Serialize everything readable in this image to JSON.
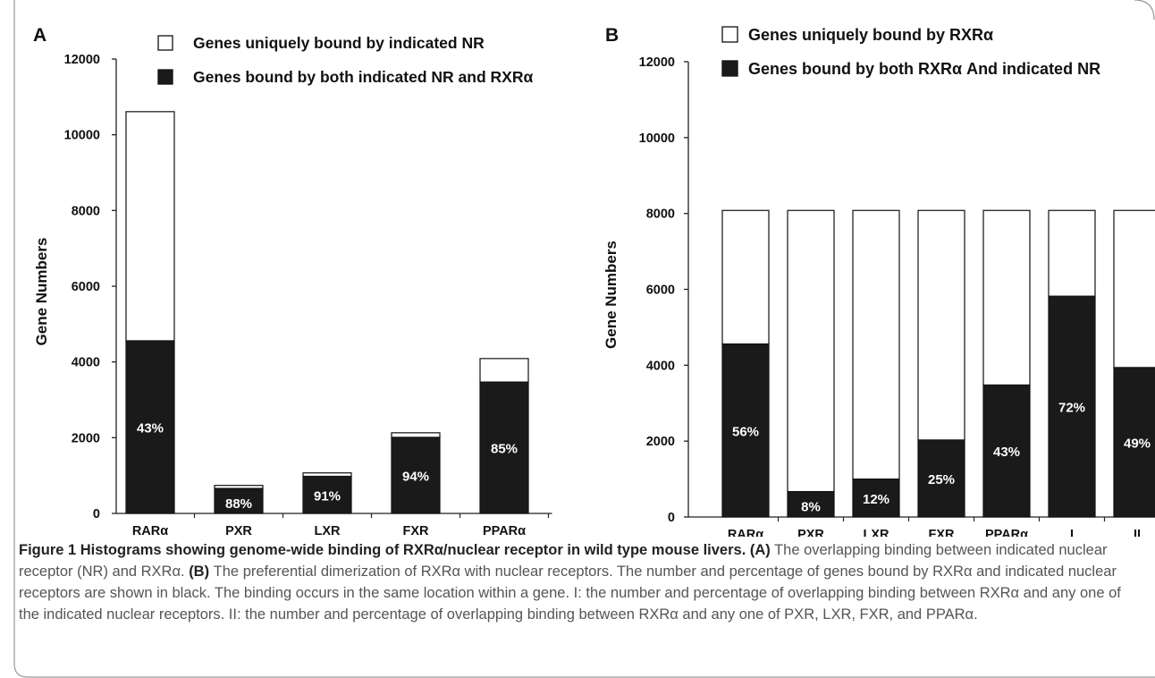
{
  "chart_data": [
    {
      "panel_label": "A",
      "type": "bar",
      "stacked": true,
      "categories": [
        "RARα",
        "PXR",
        "LXR",
        "FXR",
        "PPARα"
      ],
      "series": [
        {
          "name": "Genes uniquely bound by indicated NR",
          "color": "#ffffff",
          "values": [
            6050,
            80,
            90,
            120,
            620
          ]
        },
        {
          "name": "Genes bound by both indicated NR and RXRα",
          "color": "#1a1a1a",
          "values": [
            4560,
            660,
            980,
            2010,
            3470
          ]
        }
      ],
      "data_labels": [
        "43%",
        "88%",
        "91%",
        "94%",
        "85%"
      ],
      "ylabel": "Gene Numbers",
      "yticks": [
        "0",
        "2000",
        "4000",
        "6000",
        "8000",
        "10000",
        "12000"
      ],
      "ylim": [
        0,
        12000
      ],
      "grid": false,
      "legend_position": "top"
    },
    {
      "panel_label": "B",
      "type": "bar",
      "stacked": true,
      "categories": [
        "RARα",
        "PXR",
        "LXR",
        "FXR",
        "PPARα",
        "I",
        "II"
      ],
      "series": [
        {
          "name": "Genes uniquely bound by RXRα",
          "color": "#ffffff",
          "values": [
            3520,
            7410,
            7080,
            6050,
            4600,
            2260,
            4140
          ]
        },
        {
          "name": "Genes bound by both RXRα And indicated NR",
          "color": "#1a1a1a",
          "values": [
            4560,
            670,
            1000,
            2030,
            3480,
            5820,
            3940
          ]
        }
      ],
      "data_labels": [
        "56%",
        "8%",
        "12%",
        "25%",
        "43%",
        "72%",
        "49%"
      ],
      "ylabel": "Gene Numbers",
      "yticks": [
        "0",
        "2000",
        "4000",
        "6000",
        "8000",
        "10000",
        "12000"
      ],
      "ylim": [
        0,
        12000
      ],
      "grid": false,
      "legend_position": "top"
    }
  ],
  "caption": {
    "title": "Figure 1 Histograms showing genome-wide binding of RXRα/nuclear receptor in wild type mouse livers.",
    "label_a": "(A)",
    "text_a": " The overlapping binding between indicated nuclear receptor (NR) and RXRα.",
    "label_b": "(B)",
    "text_b": " The preferential dimerization of RXRα with nuclear receptors. The number and percentage of genes bound by RXRα and indicated nuclear receptors are shown in black. The binding occurs in the same location within a gene. I: the number and percentage of overlapping binding between RXRα and any one of the indicated nuclear receptors. II: the number and percentage of overlapping binding between RXRα and any one of PXR, LXR, FXR, and PPARα."
  }
}
